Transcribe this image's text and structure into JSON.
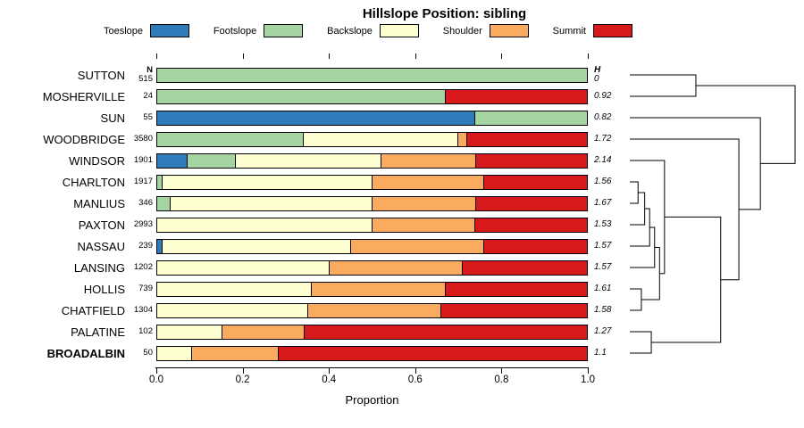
{
  "chart_data": {
    "type": "bar",
    "subtype": "horizontal-stacked-proportion-with-dendrogram",
    "title": "Hillslope Position: sibling",
    "xlabel": "Proportion",
    "xlim": [
      0,
      1
    ],
    "x_tick_labels": [
      "0.0",
      "0.2",
      "0.4",
      "0.6",
      "0.8",
      "1.0"
    ],
    "n_column_header": "N",
    "h_column_header": "H",
    "legend_position": "top",
    "classes": [
      {
        "name": "Toeslope",
        "color": "#2f7ab9"
      },
      {
        "name": "Footslope",
        "color": "#a4d4a2"
      },
      {
        "name": "Backslope",
        "color": "#feffd0"
      },
      {
        "name": "Shoulder",
        "color": "#fbab60"
      },
      {
        "name": "Summit",
        "color": "#d7191c"
      }
    ],
    "rows": [
      {
        "name": "SUTTON",
        "n": 515,
        "h": "0",
        "bold": false,
        "values": [
          0,
          1,
          0,
          0,
          0
        ]
      },
      {
        "name": "MOSHERVILLE",
        "n": 24,
        "h": "0.92",
        "bold": false,
        "values": [
          0,
          0.67,
          0,
          0,
          0.33
        ]
      },
      {
        "name": "SUN",
        "n": 55,
        "h": "0.82",
        "bold": false,
        "values": [
          0.74,
          0.26,
          0,
          0,
          0
        ]
      },
      {
        "name": "WOODBRIDGE",
        "n": 3580,
        "h": "1.72",
        "bold": false,
        "values": [
          0,
          0.34,
          0.36,
          0.02,
          0.28
        ]
      },
      {
        "name": "WINDSOR",
        "n": 1901,
        "h": "2.14",
        "bold": false,
        "values": [
          0.07,
          0.11,
          0.34,
          0.22,
          0.26
        ]
      },
      {
        "name": "CHARLTON",
        "n": 1917,
        "h": "1.56",
        "bold": false,
        "values": [
          0,
          0.01,
          0.49,
          0.26,
          0.24
        ]
      },
      {
        "name": "MANLIUS",
        "n": 346,
        "h": "1.67",
        "bold": false,
        "values": [
          0,
          0.03,
          0.47,
          0.24,
          0.26
        ]
      },
      {
        "name": "PAXTON",
        "n": 2993,
        "h": "1.53",
        "bold": false,
        "values": [
          0,
          0,
          0.5,
          0.24,
          0.26
        ]
      },
      {
        "name": "NASSAU",
        "n": 239,
        "h": "1.57",
        "bold": false,
        "values": [
          0.01,
          0,
          0.44,
          0.31,
          0.24
        ]
      },
      {
        "name": "LANSING",
        "n": 1202,
        "h": "1.57",
        "bold": false,
        "values": [
          0,
          0,
          0.4,
          0.31,
          0.29
        ]
      },
      {
        "name": "HOLLIS",
        "n": 739,
        "h": "1.61",
        "bold": false,
        "values": [
          0,
          0,
          0.36,
          0.31,
          0.33
        ]
      },
      {
        "name": "CHATFIELD",
        "n": 1304,
        "h": "1.58",
        "bold": false,
        "values": [
          0,
          0,
          0.35,
          0.31,
          0.34
        ]
      },
      {
        "name": "PALATINE",
        "n": 102,
        "h": "1.27",
        "bold": false,
        "values": [
          0,
          0,
          0.15,
          0.19,
          0.66
        ]
      },
      {
        "name": "BROADALBIN",
        "n": 50,
        "h": "1.1",
        "bold": true,
        "values": [
          0,
          0,
          0.08,
          0.2,
          0.72
        ]
      }
    ],
    "dendrogram": {
      "orientation": "right",
      "merges": [
        {
          "id": "m1",
          "a": "SUTTON",
          "b": "MOSHERVILLE",
          "h": 0.4
        },
        {
          "id": "m2",
          "a": "CHARLTON",
          "b": "MANLIUS",
          "h": 0.05
        },
        {
          "id": "m3",
          "a": "m2",
          "b": "PAXTON",
          "h": 0.09
        },
        {
          "id": "m4",
          "a": "m3",
          "b": "NASSAU",
          "h": 0.12
        },
        {
          "id": "m5",
          "a": "m4",
          "b": "LANSING",
          "h": 0.15
        },
        {
          "id": "m6",
          "a": "HOLLIS",
          "b": "CHATFIELD",
          "h": 0.07
        },
        {
          "id": "m7",
          "a": "m5",
          "b": "m6",
          "h": 0.18
        },
        {
          "id": "m8",
          "a": "WINDSOR",
          "b": "m7",
          "h": 0.21
        },
        {
          "id": "m9",
          "a": "PALATINE",
          "b": "BROADALBIN",
          "h": 0.13
        },
        {
          "id": "m10",
          "a": "m8",
          "b": "m9",
          "h": 0.55
        },
        {
          "id": "m11",
          "a": "WOODBRIDGE",
          "b": "m10",
          "h": 0.66
        },
        {
          "id": "m12",
          "a": "SUN",
          "b": "m11",
          "h": 0.79
        },
        {
          "id": "m13",
          "a": "m1",
          "b": "m12",
          "h": 1
        }
      ]
    }
  }
}
